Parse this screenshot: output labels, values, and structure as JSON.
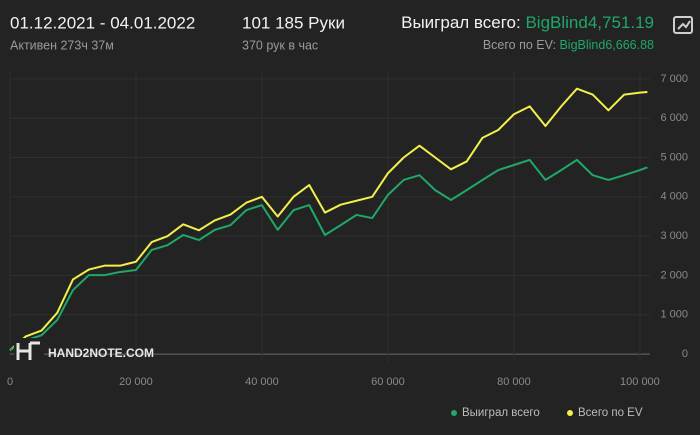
{
  "header": {
    "period": "01.12.2021 - 04.01.2022",
    "active": "Активен 273ч 37м",
    "hands": "101 185 Руки",
    "rate": "370 рук в час",
    "won_label": "Выиграл всего:",
    "won_value": "BigBlind4,751.19",
    "ev_label": "Всего по EV:",
    "ev_value": "BigBlind6,666.88"
  },
  "chart_data": {
    "type": "line",
    "watermark": "HAND2NOTE.COM",
    "x": [
      0,
      2500,
      5000,
      7500,
      10000,
      12500,
      15000,
      17500,
      20000,
      22500,
      25000,
      27500,
      30000,
      32500,
      35000,
      37500,
      40000,
      42500,
      45000,
      47500,
      50000,
      52500,
      55000,
      57500,
      60000,
      62500,
      65000,
      67500,
      70000,
      72500,
      75000,
      77500,
      80000,
      82500,
      85000,
      87500,
      90000,
      92500,
      95000,
      97500,
      100000,
      101185
    ],
    "series": [
      {
        "name": "Выиграл всего",
        "color": "#1fa868",
        "values": [
          100,
          350,
          480,
          870,
          1630,
          2010,
          2010,
          2090,
          2140,
          2650,
          2770,
          3030,
          2900,
          3160,
          3280,
          3660,
          3790,
          3160,
          3660,
          3790,
          3030,
          3280,
          3540,
          3460,
          4050,
          4430,
          4550,
          4170,
          3920,
          4170,
          4430,
          4680,
          4810,
          4940,
          4430,
          4680,
          4940,
          4550,
          4430,
          4550,
          4680,
          4751.19
        ]
      },
      {
        "name": "Всего по EV",
        "color": "#f1f14a",
        "values": [
          100,
          450,
          600,
          1050,
          1900,
          2150,
          2250,
          2250,
          2350,
          2850,
          3000,
          3300,
          3150,
          3400,
          3550,
          3850,
          4000,
          3500,
          4000,
          4300,
          3600,
          3800,
          3900,
          4000,
          4600,
          5000,
          5300,
          5000,
          4700,
          4900,
          5500,
          5700,
          6100,
          6300,
          5800,
          6300,
          6750,
          6600,
          6200,
          6600,
          6650,
          6666.88
        ]
      }
    ],
    "xlim": [
      0,
      101600
    ],
    "ylim": [
      -200,
      7200
    ],
    "xticks": [
      0,
      {
        "value": 20000,
        "label": "20 000"
      },
      {
        "value": 40000,
        "label": "40 000"
      },
      {
        "value": 60000,
        "label": "60 000"
      },
      {
        "value": 80000,
        "label": "80 000"
      },
      {
        "value": 100000,
        "label": "100 000"
      }
    ],
    "yticks": [
      0,
      {
        "value": 1000,
        "label": "1 000"
      },
      {
        "value": 2000,
        "label": "2 000"
      },
      {
        "value": 3000,
        "label": "3 000"
      },
      {
        "value": 4000,
        "label": "4 000"
      },
      {
        "value": 5000,
        "label": "5 000"
      },
      {
        "value": 6000,
        "label": "6 000"
      },
      {
        "value": 7000,
        "label": "7 000"
      }
    ],
    "grid": true
  }
}
